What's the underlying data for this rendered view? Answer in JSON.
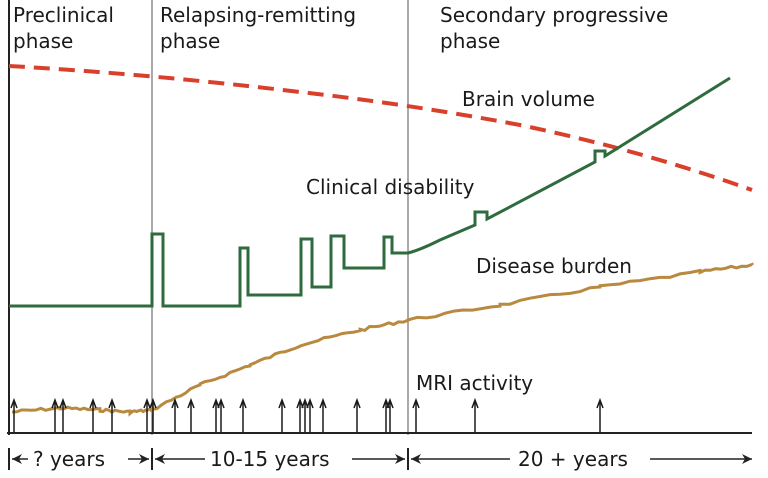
{
  "phases": [
    {
      "line1": "Preclinical",
      "line2": "phase"
    },
    {
      "line1": "Relapsing-remitting",
      "line2": "phase"
    },
    {
      "line1": "Secondary progressive",
      "line2": "phase"
    }
  ],
  "curves": {
    "brain_volume": {
      "label": "Brain volume",
      "color": "#d9402b"
    },
    "clinical_disability": {
      "label": "Clinical disability",
      "color": "#2e6b3d"
    },
    "disease_burden": {
      "label": "Disease burden",
      "color": "#b8893f"
    },
    "mri_activity": {
      "label": "MRI activity",
      "color": "#1a1a1a"
    }
  },
  "durations": [
    "? years",
    "10-15 years",
    "20 + years"
  ]
}
